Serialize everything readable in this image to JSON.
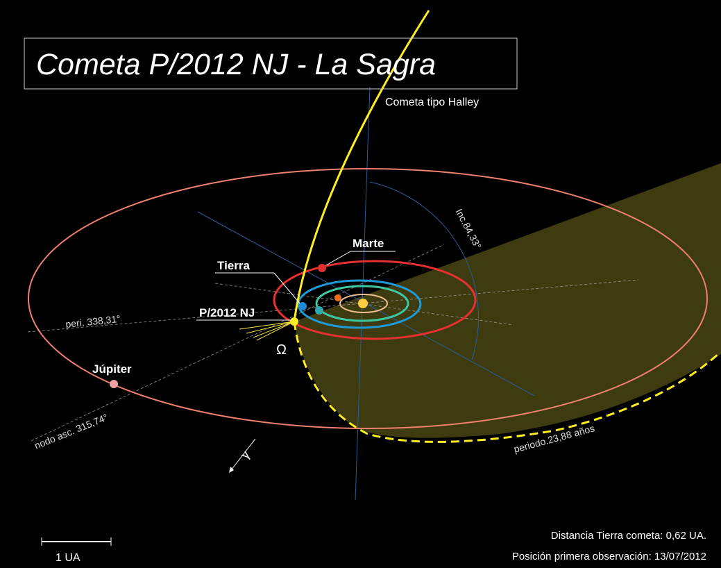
{
  "header": {
    "title": "Cometa P/2012 NJ - La Sagra"
  },
  "labels": {
    "comet_type": "Cometa tipo Halley",
    "inclination": "Inc.84,33°",
    "mars": "Marte",
    "earth": "Tierra",
    "comet": "P/2012 NJ",
    "perihelion": "peri. 338,31°",
    "node_symbol": "Ω",
    "jupiter": "Júpiter",
    "ascending_node": "nodo asc. 315,74°",
    "vernal_symbol": "γ",
    "period": "periodo.23,88 años"
  },
  "footer": {
    "distance": "Distancia Tierra cometa: 0,62 UA.",
    "observation": "Posición primera observación: 13/07/2012",
    "scale": "1 UA"
  }
}
